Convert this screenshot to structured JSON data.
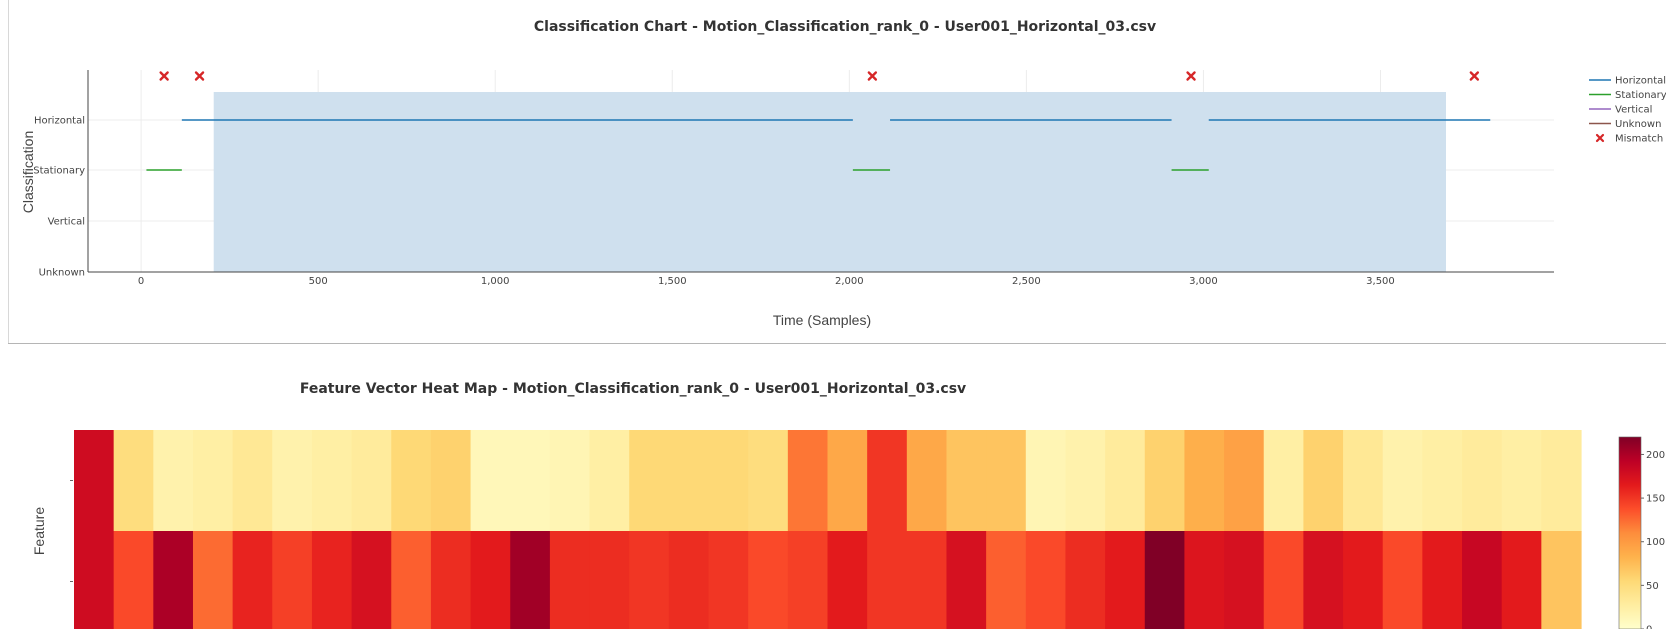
{
  "chart_data": [
    {
      "type": "line",
      "title": "Classification Chart - Motion_Classification_rank_0 - User001_Horizontal_03.csv",
      "xlabel": "Time (Samples)",
      "ylabel": "Classification",
      "categories": [
        "Unknown",
        "Vertical",
        "Stationary",
        "Horizontal"
      ],
      "x_ticks": [
        0,
        500,
        1000,
        1500,
        2000,
        2500,
        3000,
        3500
      ],
      "x_tick_labels": [
        "0",
        "500",
        "1,000",
        "1,500",
        "2,000",
        "2,500",
        "3,000",
        "3,500"
      ],
      "xlim": [
        -150,
        3990
      ],
      "grid": true,
      "legend_position": "top-right",
      "shaded_region": {
        "x_start": 205,
        "x_end": 3685,
        "color": "#cfe0ee"
      },
      "series": [
        {
          "name": "Horizontal",
          "color": "#1f77b4",
          "segments": [
            [
              115,
              2010
            ],
            [
              2115,
              2910
            ],
            [
              3015,
              3810
            ]
          ],
          "level": "Horizontal"
        },
        {
          "name": "Stationary",
          "color": "#2ca02c",
          "segments": [
            [
              15,
              115
            ],
            [
              2010,
              2115
            ],
            [
              2910,
              3015
            ]
          ],
          "level": "Stationary"
        },
        {
          "name": "Vertical",
          "color": "#9467bd",
          "segments": [],
          "level": "Vertical"
        },
        {
          "name": "Unknown",
          "color": "#8c564b",
          "segments": [],
          "level": "Unknown"
        }
      ],
      "mismatch": {
        "name": "Mismatch",
        "color": "#d62728",
        "x": [
          65,
          165,
          2065,
          2965,
          3765
        ]
      }
    },
    {
      "type": "heatmap",
      "title": "Feature Vector Heat Map - Motion_Classification_rank_0 - User001_Horizontal_03.csv",
      "ylabel": "Feature",
      "y_tick_labels": [
        "",
        ""
      ],
      "colorscale": "YlOrRd",
      "zmin": 0,
      "zmax": 220,
      "colorbar_ticks": [
        0,
        50,
        100,
        150,
        200
      ],
      "rows": [
        [
          180,
          50,
          20,
          25,
          35,
          20,
          25,
          30,
          55,
          60,
          12,
          12,
          15,
          25,
          55,
          55,
          55,
          50,
          120,
          90,
          150,
          90,
          70,
          70,
          15,
          20,
          30,
          60,
          85,
          95,
          25,
          60,
          35,
          20,
          25,
          30,
          25,
          30
        ],
        [
          180,
          140,
          200,
          125,
          160,
          145,
          160,
          175,
          130,
          155,
          165,
          205,
          155,
          155,
          150,
          155,
          150,
          140,
          145,
          165,
          150,
          150,
          175,
          130,
          140,
          155,
          165,
          220,
          170,
          175,
          140,
          175,
          165,
          140,
          165,
          185,
          165,
          70
        ]
      ]
    }
  ],
  "legend": {
    "items": [
      {
        "label": "Horizontal",
        "color": "#1f77b4",
        "symbol": "line"
      },
      {
        "label": "Stationary",
        "color": "#2ca02c",
        "symbol": "line"
      },
      {
        "label": "Vertical",
        "color": "#9467bd",
        "symbol": "line"
      },
      {
        "label": "Unknown",
        "color": "#8c564b",
        "symbol": "line"
      },
      {
        "label": "Mismatch",
        "color": "#d62728",
        "symbol": "x"
      }
    ]
  }
}
